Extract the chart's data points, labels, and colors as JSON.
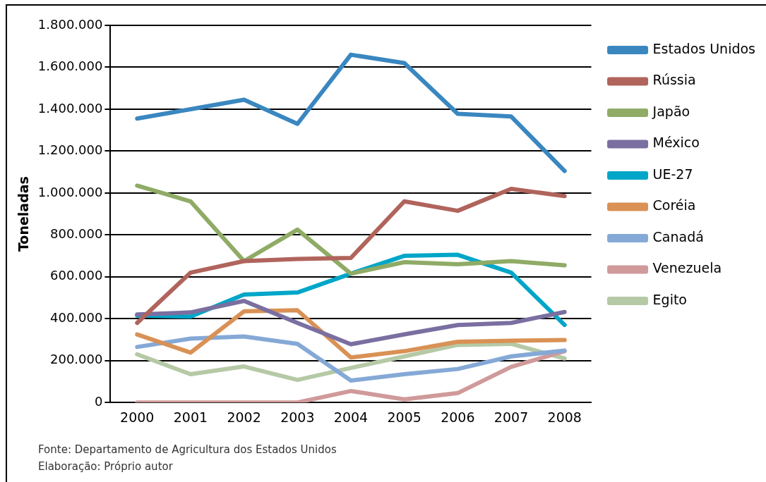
{
  "chart_data": {
    "type": "line",
    "ylabel": "Toneladas",
    "categories": [
      "2000",
      "2001",
      "2002",
      "2003",
      "2004",
      "2005",
      "2006",
      "2007",
      "2008"
    ],
    "series": [
      {
        "name": "Estados Unidos",
        "color": "#3a87c0",
        "values": [
          1355000,
          1400000,
          1445000,
          1330000,
          1660000,
          1620000,
          1378000,
          1365000,
          1105000
        ]
      },
      {
        "name": "Rússia",
        "color": "#b0645c",
        "values": [
          380000,
          620000,
          675000,
          685000,
          690000,
          960000,
          915000,
          1020000,
          985000
        ]
      },
      {
        "name": "Japão",
        "color": "#8fab65",
        "values": [
          1035000,
          960000,
          675000,
          825000,
          615000,
          670000,
          660000,
          675000,
          655000
        ]
      },
      {
        "name": "México",
        "color": "#7a6fa0",
        "values": [
          420000,
          430000,
          485000,
          380000,
          278000,
          325000,
          370000,
          380000,
          432000
        ]
      },
      {
        "name": "UE-27",
        "color": "#00a6c8",
        "values": [
          415000,
          410000,
          515000,
          525000,
          615000,
          700000,
          705000,
          620000,
          370000
        ]
      },
      {
        "name": "Coréia",
        "color": "#d99155",
        "values": [
          325000,
          238000,
          435000,
          440000,
          215000,
          245000,
          290000,
          295000,
          298000
        ]
      },
      {
        "name": "Canadá",
        "color": "#85a9d6",
        "values": [
          265000,
          305000,
          315000,
          280000,
          105000,
          135000,
          160000,
          220000,
          248000
        ]
      },
      {
        "name": "Venezuela",
        "color": "#d09a9a",
        "values": [
          0,
          0,
          0,
          0,
          55000,
          15000,
          45000,
          170000,
          245000
        ]
      },
      {
        "name": "Egito",
        "color": "#b6c9a6",
        "values": [
          230000,
          135000,
          172000,
          108000,
          165000,
          220000,
          275000,
          280000,
          210000
        ]
      }
    ],
    "ylim": [
      0,
      1800000
    ],
    "yticks": [
      {
        "value": 0,
        "label": "0"
      },
      {
        "value": 200000,
        "label": "200.000"
      },
      {
        "value": 400000,
        "label": "400.000"
      },
      {
        "value": 600000,
        "label": "600.000"
      },
      {
        "value": 800000,
        "label": "800.000"
      },
      {
        "value": 1000000,
        "label": "1.000.000"
      },
      {
        "value": 1200000,
        "label": "1.200.000"
      },
      {
        "value": 1400000,
        "label": "1.400.000"
      },
      {
        "value": 1600000,
        "label": "1.600.000"
      },
      {
        "value": 1800000,
        "label": "1.800.000"
      }
    ],
    "grid": "y",
    "legend": "right",
    "marker": "none",
    "line_style": "solid",
    "annotations": [
      "Fonte: Departamento de Agricultura dos Estados Unidos",
      "Elaboração: Próprio autor"
    ]
  }
}
